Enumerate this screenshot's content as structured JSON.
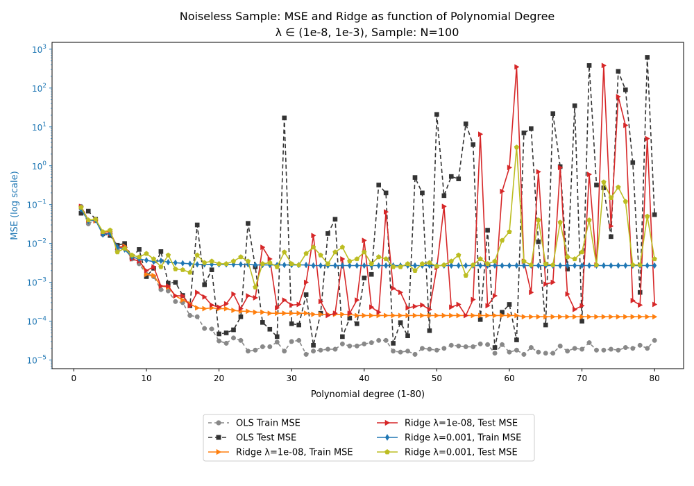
{
  "chart_data": {
    "type": "line",
    "title": "Noiseless Sample: MSE and Ridge as function of Polynomial Degree",
    "subtitle": "λ ∈ (1e-8, 1e-3), Sample: N=100",
    "xlabel": "Polynomial degree (1-80)",
    "ylabel": "MSE (log scale)",
    "ylabel_color": "#1f77b4",
    "y_scale": "log",
    "xlim": [
      -3,
      84
    ],
    "ylim": [
      6e-06,
      1500
    ],
    "x_ticks": [
      0,
      10,
      20,
      30,
      40,
      50,
      60,
      70,
      80
    ],
    "y_tick_labels": [
      {
        "value": 1e-05,
        "base": "10",
        "exp": "−5"
      },
      {
        "value": 0.0001,
        "base": "10",
        "exp": "−4"
      },
      {
        "value": 0.001,
        "base": "10",
        "exp": "−3"
      },
      {
        "value": 0.01,
        "base": "10",
        "exp": "−2"
      },
      {
        "value": 0.1,
        "base": "10",
        "exp": "−1"
      },
      {
        "value": 1.0,
        "base": "10",
        "exp": "0"
      },
      {
        "value": 10.0,
        "base": "10",
        "exp": "1"
      },
      {
        "value": 100.0,
        "base": "10",
        "exp": "2"
      },
      {
        "value": 1000.0,
        "base": "10",
        "exp": "3"
      }
    ],
    "grid": false,
    "legend_position": "bottom-center",
    "x": [
      1,
      2,
      3,
      4,
      5,
      6,
      7,
      8,
      9,
      10,
      11,
      12,
      13,
      14,
      15,
      16,
      17,
      18,
      19,
      20,
      21,
      22,
      23,
      24,
      25,
      26,
      27,
      28,
      29,
      30,
      31,
      32,
      33,
      34,
      35,
      36,
      37,
      38,
      39,
      40,
      41,
      42,
      43,
      44,
      45,
      46,
      47,
      48,
      49,
      50,
      51,
      52,
      53,
      54,
      55,
      56,
      57,
      58,
      59,
      60,
      61,
      62,
      63,
      64,
      65,
      66,
      67,
      68,
      69,
      70,
      71,
      72,
      73,
      74,
      75,
      76,
      77,
      78,
      79,
      80
    ],
    "series": [
      {
        "name": "OLS Train MSE",
        "color": "#888888",
        "marker": "circle",
        "dash": "5,4",
        "values": [
          0.09,
          0.032,
          0.04,
          0.017,
          0.02,
          0.007,
          0.009,
          0.004,
          0.003,
          0.0016,
          0.0014,
          0.00065,
          0.0006,
          0.00032,
          0.0003,
          0.00014,
          0.00013,
          6.5e-05,
          6.3e-05,
          3.1e-05,
          2.7e-05,
          3.7e-05,
          3.2e-05,
          1.7e-05,
          1.8e-05,
          2.2e-05,
          2.2e-05,
          2.9e-05,
          1.7e-05,
          3e-05,
          3.2e-05,
          1.4e-05,
          1.7e-05,
          1.8e-05,
          1.9e-05,
          1.9e-05,
          2.6e-05,
          2.3e-05,
          2.3e-05,
          2.6e-05,
          2.8e-05,
          3.2e-05,
          3.2e-05,
          1.7e-05,
          1.6e-05,
          1.7e-05,
          1.4e-05,
          2e-05,
          1.9e-05,
          1.8e-05,
          2e-05,
          2.4e-05,
          2.3e-05,
          2.2e-05,
          2.2e-05,
          2.6e-05,
          2.5e-05,
          1.5e-05,
          2.5e-05,
          1.6e-05,
          1.8e-05,
          1.4e-05,
          2.1e-05,
          1.6e-05,
          1.5e-05,
          1.5e-05,
          2.3e-05,
          1.7e-05,
          2e-05,
          1.9e-05,
          2.8e-05,
          1.8e-05,
          1.8e-05,
          1.9e-05,
          1.8e-05,
          2.1e-05,
          2e-05,
          2.4e-05,
          2e-05,
          3.2e-05
        ]
      },
      {
        "name": "OLS Test MSE",
        "color": "#333333",
        "marker": "square",
        "dash": "6,4",
        "values": [
          0.06,
          0.068,
          0.042,
          0.018,
          0.016,
          0.009,
          0.01,
          0.0045,
          0.007,
          0.0014,
          0.0023,
          0.0062,
          0.00095,
          0.001,
          0.00046,
          0.00025,
          0.03,
          0.00087,
          0.0021,
          4.7e-05,
          5e-05,
          6e-05,
          0.00013,
          0.033,
          0.0025,
          9.3e-05,
          6.2e-05,
          4e-05,
          17,
          8.6e-05,
          8e-05,
          0.00048,
          2.4e-05,
          0.00016,
          0.018,
          0.042,
          4e-05,
          0.00012,
          8.6e-05,
          0.0013,
          0.0016,
          0.32,
          0.2,
          2.7e-05,
          9.2e-05,
          4.2e-05,
          0.5,
          0.2,
          5.7e-05,
          21,
          0.17,
          0.53,
          0.46,
          12,
          3.5,
          0.00011,
          0.022,
          2.1e-05,
          0.00017,
          0.00027,
          3.3e-05,
          7,
          9,
          0.011,
          8e-05,
          22,
          0.95,
          0.0022,
          35,
          0.0001,
          380,
          0.32,
          0.27,
          0.015,
          270,
          90,
          1.2,
          0.00055,
          620,
          0.055
        ]
      },
      {
        "name": "Ridge λ=1e-08, Train MSE",
        "color": "#ff7f0e",
        "marker": "triangle-right",
        "dash": "",
        "values": [
          0.085,
          0.04,
          0.038,
          0.02,
          0.02,
          0.008,
          0.0085,
          0.0045,
          0.004,
          0.0016,
          0.0015,
          0.0008,
          0.00075,
          0.00045,
          0.00035,
          0.00028,
          0.00022,
          0.00021,
          0.00022,
          0.00021,
          0.00021,
          0.00019,
          0.00018,
          0.00018,
          0.00017,
          0.00017,
          0.00016,
          0.00016,
          0.00016,
          0.00016,
          0.00016,
          0.00016,
          0.00015,
          0.00015,
          0.00015,
          0.00015,
          0.00015,
          0.00015,
          0.00014,
          0.00014,
          0.00014,
          0.00014,
          0.00014,
          0.00014,
          0.00014,
          0.00014,
          0.00014,
          0.00014,
          0.00014,
          0.00014,
          0.00014,
          0.00014,
          0.00014,
          0.00014,
          0.00014,
          0.00014,
          0.00014,
          0.00014,
          0.00014,
          0.00014,
          0.00014,
          0.00013,
          0.00013,
          0.00013,
          0.00013,
          0.00013,
          0.00013,
          0.00013,
          0.00013,
          0.00013,
          0.00013,
          0.00013,
          0.00013,
          0.00013,
          0.00013,
          0.00013,
          0.00013,
          0.00013,
          0.00013,
          0.00013
        ]
      },
      {
        "name": "Ridge λ=1e-08, Test MSE",
        "color": "#d62728",
        "marker": "triangle-right",
        "dash": "",
        "values": [
          0.09,
          0.04,
          0.04,
          0.018,
          0.018,
          0.008,
          0.008,
          0.004,
          0.0035,
          0.002,
          0.0025,
          0.0008,
          0.0008,
          0.00045,
          0.00045,
          0.00025,
          0.00055,
          0.00042,
          0.00026,
          0.00023,
          0.00028,
          0.0005,
          0.00021,
          0.00045,
          0.0004,
          0.008,
          0.004,
          0.00022,
          0.00035,
          0.00026,
          0.00027,
          0.001,
          0.016,
          0.00032,
          0.00014,
          0.00016,
          0.004,
          0.00016,
          0.00035,
          0.012,
          0.00023,
          0.00017,
          0.065,
          0.0007,
          0.00055,
          0.00022,
          0.00024,
          0.00026,
          0.0002,
          0.0024,
          0.09,
          0.00023,
          0.00027,
          0.00014,
          0.00036,
          6.5,
          0.00025,
          0.00045,
          0.22,
          0.9,
          350,
          0.0035,
          0.00055,
          0.7,
          0.0009,
          0.001,
          0.9,
          0.0005,
          0.0002,
          0.00025,
          0.6,
          0.0028,
          380,
          0.028,
          60,
          11,
          0.00034,
          0.00026,
          5,
          0.00027
        ]
      },
      {
        "name": "Ridge λ=0.001, Train MSE",
        "color": "#1f77b4",
        "marker": "diamond",
        "dash": "",
        "values": [
          0.075,
          0.038,
          0.04,
          0.017,
          0.018,
          0.008,
          0.007,
          0.0045,
          0.004,
          0.0037,
          0.0034,
          0.0036,
          0.0033,
          0.0032,
          0.0031,
          0.003,
          0.0029,
          0.0029,
          0.0029,
          0.0029,
          0.0029,
          0.0029,
          0.0029,
          0.0029,
          0.0028,
          0.0028,
          0.0028,
          0.0028,
          0.0028,
          0.0028,
          0.0028,
          0.0028,
          0.0027,
          0.0027,
          0.0027,
          0.0027,
          0.0027,
          0.0027,
          0.0027,
          0.0027,
          0.0027,
          0.0027,
          0.0027,
          0.0027,
          0.0027,
          0.0027,
          0.0027,
          0.0027,
          0.0027,
          0.0027,
          0.0027,
          0.0027,
          0.0027,
          0.0027,
          0.0027,
          0.0027,
          0.0027,
          0.0027,
          0.0027,
          0.0027,
          0.0027,
          0.0027,
          0.0027,
          0.0027,
          0.0027,
          0.0027,
          0.0027,
          0.0027,
          0.0027,
          0.0027,
          0.0027,
          0.0027,
          0.0027,
          0.0027,
          0.0027,
          0.0027,
          0.0027,
          0.0027,
          0.0027,
          0.0027
        ]
      },
      {
        "name": "Ridge λ=0.001, Test MSE",
        "color": "#bcbd22",
        "marker": "pentagon",
        "dash": "",
        "values": [
          0.085,
          0.04,
          0.042,
          0.02,
          0.022,
          0.006,
          0.0075,
          0.005,
          0.0045,
          0.0055,
          0.004,
          0.0025,
          0.005,
          0.0022,
          0.0021,
          0.0018,
          0.005,
          0.0032,
          0.0035,
          0.003,
          0.003,
          0.0035,
          0.0045,
          0.0035,
          0.00075,
          0.003,
          0.0032,
          0.0025,
          0.006,
          0.003,
          0.0028,
          0.0055,
          0.008,
          0.005,
          0.003,
          0.006,
          0.008,
          0.0035,
          0.004,
          0.006,
          0.003,
          0.0045,
          0.004,
          0.0025,
          0.0025,
          0.003,
          0.002,
          0.003,
          0.0032,
          0.0026,
          0.0028,
          0.0035,
          0.005,
          0.0015,
          0.0028,
          0.004,
          0.003,
          0.0035,
          0.012,
          0.02,
          3,
          0.0035,
          0.0028,
          0.04,
          0.003,
          0.0028,
          0.035,
          0.0045,
          0.004,
          0.006,
          0.04,
          0.0028,
          0.38,
          0.15,
          0.28,
          0.12,
          0.0028,
          0.0028,
          0.05,
          0.004
        ]
      }
    ]
  }
}
